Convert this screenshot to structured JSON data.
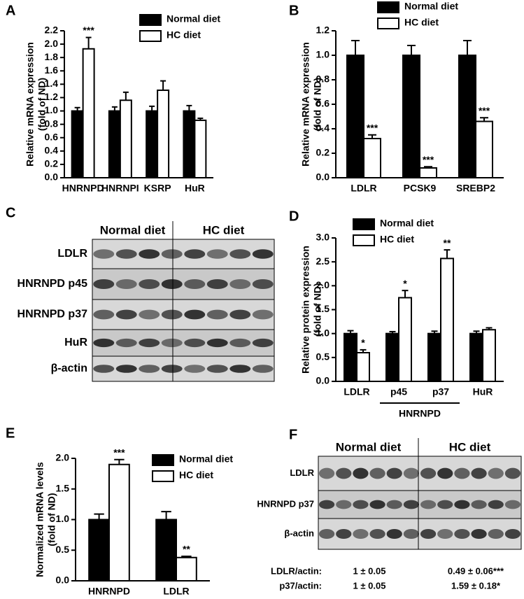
{
  "chart_data": [
    {
      "type": "bar",
      "panel": "A",
      "ylabel": [
        "Relative mRNA expression",
        "(fold of ND)"
      ],
      "categories": [
        "HNRNPD",
        "HNRNPI",
        "KSRP",
        "HuR"
      ],
      "series": [
        {
          "name": "Normal diet",
          "color": "#000000",
          "values": [
            1.0,
            1.0,
            1.0,
            1.0
          ],
          "errors": [
            0.05,
            0.06,
            0.07,
            0.08
          ]
        },
        {
          "name": "HC diet",
          "color": "#ffffff",
          "values": [
            1.93,
            1.16,
            1.31,
            0.86
          ],
          "errors": [
            0.17,
            0.12,
            0.14,
            0.03
          ]
        }
      ],
      "annotations": [
        {
          "series": 1,
          "index": 0,
          "text": "***"
        }
      ],
      "ylim": [
        0,
        2.2
      ],
      "yticks": [
        {
          "value": 0,
          "label": "0.0"
        },
        0.2,
        0.4,
        0.6,
        0.8,
        {
          "value": 1,
          "label": "1.0"
        },
        1.2,
        1.4,
        1.6,
        1.8,
        {
          "value": 2,
          "label": "2.0"
        },
        2.2
      ]
    },
    {
      "type": "bar",
      "panel": "B",
      "ylabel": [
        "Relative mRNA expression",
        "(fold of ND)"
      ],
      "categories": [
        "LDLR",
        "PCSK9",
        "SREBP2"
      ],
      "series": [
        {
          "name": "Normal diet",
          "color": "#000000",
          "values": [
            1.0,
            1.0,
            1.0
          ],
          "errors": [
            0.12,
            0.08,
            0.12
          ]
        },
        {
          "name": "HC diet",
          "color": "#ffffff",
          "values": [
            0.32,
            0.08,
            0.46
          ],
          "errors": [
            0.03,
            0.01,
            0.03
          ]
        }
      ],
      "annotations": [
        {
          "series": 1,
          "index": 0,
          "text": "***"
        },
        {
          "series": 1,
          "index": 1,
          "text": "***"
        },
        {
          "series": 1,
          "index": 2,
          "text": "***"
        }
      ],
      "ylim": [
        0,
        1.2
      ],
      "yticks": [
        {
          "value": 0,
          "label": "0.0"
        },
        0.2,
        0.4,
        0.6,
        0.8,
        {
          "value": 1,
          "label": "1.0"
        },
        1.2
      ]
    },
    {
      "type": "bar",
      "panel": "D",
      "ylabel": [
        "Relative protein expression",
        "(fold of ND)"
      ],
      "categories": [
        "LDLR",
        "p45",
        "p37",
        "HuR"
      ],
      "category_groups": [
        {
          "label": "HNRNPD",
          "from": 1,
          "to": 2
        }
      ],
      "series": [
        {
          "name": "Normal diet",
          "color": "#000000",
          "values": [
            1.0,
            1.0,
            1.0,
            1.0
          ],
          "errors": [
            0.06,
            0.04,
            0.05,
            0.05
          ]
        },
        {
          "name": "HC diet",
          "color": "#ffffff",
          "values": [
            0.6,
            1.75,
            2.57,
            1.08
          ],
          "errors": [
            0.06,
            0.15,
            0.18,
            0.04
          ]
        }
      ],
      "annotations": [
        {
          "series": 1,
          "index": 0,
          "text": "*"
        },
        {
          "series": 1,
          "index": 1,
          "text": "*"
        },
        {
          "series": 1,
          "index": 2,
          "text": "**"
        }
      ],
      "ylim": [
        0,
        3.0
      ],
      "yticks": [
        {
          "value": 0,
          "label": "0.0"
        },
        0.5,
        {
          "value": 1,
          "label": "1.0"
        },
        1.5,
        {
          "value": 2,
          "label": "2.0"
        },
        2.5,
        {
          "value": 3,
          "label": "3.0"
        }
      ]
    },
    {
      "type": "bar",
      "panel": "E",
      "ylabel": [
        "Normalized mRNA levels",
        "(fold of ND)"
      ],
      "categories": [
        "HNRNPD",
        "LDLR"
      ],
      "series": [
        {
          "name": "Normal diet",
          "color": "#000000",
          "values": [
            1.0,
            1.0
          ],
          "errors": [
            0.09,
            0.13
          ]
        },
        {
          "name": "HC diet",
          "color": "#ffffff",
          "values": [
            1.9,
            0.38
          ],
          "errors": [
            0.08,
            0.02
          ]
        }
      ],
      "annotations": [
        {
          "series": 1,
          "index": 0,
          "text": "***"
        },
        {
          "series": 1,
          "index": 1,
          "text": "**"
        }
      ],
      "ylim": [
        0,
        2.0
      ],
      "yticks": [
        {
          "value": 0,
          "label": "0.0"
        },
        0.5,
        {
          "value": 1,
          "label": "1.0"
        },
        1.5,
        {
          "value": 2,
          "label": "2.0"
        }
      ]
    }
  ],
  "blots": [
    {
      "panel": "C",
      "groups": [
        "Normal diet",
        "HC diet"
      ],
      "rows": [
        "LDLR",
        "HNRNPD p45",
        "HNRNPD p37",
        "HuR",
        "β-actin"
      ]
    },
    {
      "panel": "F",
      "groups": [
        "Normal diet",
        "HC diet"
      ],
      "rows": [
        "LDLR",
        "HNRNPD p37",
        "β-actin"
      ],
      "quantification": [
        [
          "LDLR/actin:",
          "1 ± 0.05",
          "0.49 ± 0.06***"
        ],
        [
          "p37/actin:",
          "1 ± 0.05",
          "1.59 ± 0.18*"
        ]
      ]
    }
  ]
}
